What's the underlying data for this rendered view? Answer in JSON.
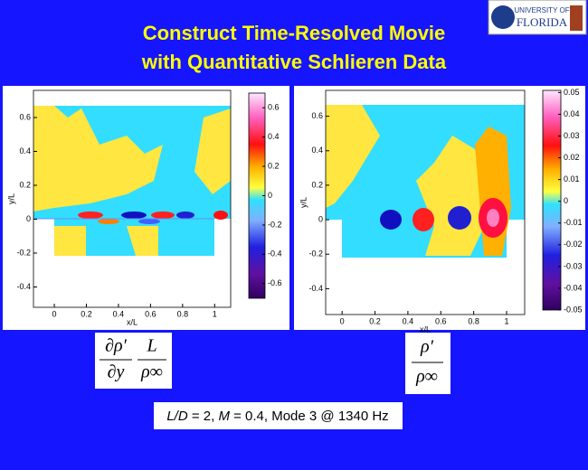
{
  "header": {
    "title": [
      "Construct Time-Resolved Movie",
      "with Quantitative Schlieren Data"
    ],
    "logo": [
      "UNIVERSITY OF",
      "FLORIDA"
    ]
  },
  "panels": [
    {
      "xlabel": "x/L",
      "ylabel": "y/L",
      "xlim": [
        -0.13,
        1.1
      ],
      "ylim": [
        -0.52,
        0.76
      ],
      "xticks": [
        0,
        0.2,
        0.4,
        0.6,
        0.8,
        1
      ],
      "yticks": [
        -0.4,
        -0.2,
        0,
        0.2,
        0.4,
        0.6
      ],
      "colorbar": {
        "lim": [
          -0.7,
          0.7
        ],
        "ticks": [
          0.6,
          0.4,
          0.2,
          0,
          -0.2,
          -0.4,
          -0.6
        ]
      },
      "formula": {
        "numerator": [
          "∂ρ′",
          "L"
        ],
        "denominator": [
          "∂y",
          "ρ∞"
        ]
      }
    },
    {
      "xlabel": "x/L",
      "ylabel": "y/L",
      "xlim": [
        -0.1,
        1.11
      ],
      "ylim": [
        -0.55,
        0.75
      ],
      "xticks": [
        0,
        0.2,
        0.4,
        0.6,
        0.8,
        1
      ],
      "yticks": [
        -0.4,
        -0.2,
        0,
        0.2,
        0.4,
        0.6
      ],
      "colorbar": {
        "lim": [
          -0.05,
          0.051
        ],
        "ticks": [
          0.05,
          0.04,
          0.03,
          0.02,
          0.01,
          0,
          -0.01,
          -0.02,
          -0.03,
          -0.04,
          -0.05
        ]
      },
      "formula": {
        "numerator": [
          "ρ′"
        ],
        "denominator": [
          "ρ∞"
        ]
      }
    }
  ],
  "caption": [
    "L/D",
    " = 2, ",
    "M",
    " = 0.4, Mode 3 @ 1340 Hz"
  ]
}
